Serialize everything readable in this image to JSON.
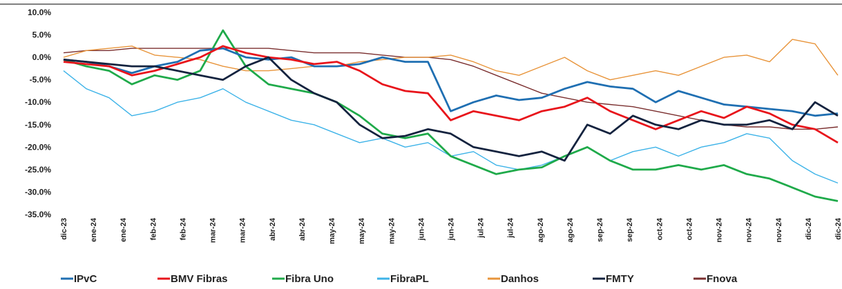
{
  "chart_data": {
    "type": "line",
    "title": "",
    "xlabel": "",
    "ylabel": "",
    "ylim": [
      -0.35,
      0.1
    ],
    "y_ticks": [
      {
        "value": 0.1,
        "label": "10.0%"
      },
      {
        "value": 0.05,
        "label": "5.0%"
      },
      {
        "value": 0.0,
        "label": "0.0%"
      },
      {
        "value": -0.05,
        "label": "-5.0%"
      },
      {
        "value": -0.1,
        "label": "-10.0%"
      },
      {
        "value": -0.15,
        "label": "-15.0%"
      },
      {
        "value": -0.2,
        "label": "-20.0%"
      },
      {
        "value": -0.25,
        "label": "-25.0%"
      },
      {
        "value": -0.3,
        "label": "-30.0%"
      },
      {
        "value": -0.35,
        "label": "-35.0%"
      }
    ],
    "x_tick_labels": [
      "dic-23",
      "ene-24",
      "ene-24",
      "feb-24",
      "feb-24",
      "mar-24",
      "mar-24",
      "abr-24",
      "abr-24",
      "may-24",
      "may-24",
      "may-24",
      "jun-24",
      "jun-24",
      "jul-24",
      "jul-24",
      "ago-24",
      "ago-24",
      "sep-24",
      "sep-24",
      "oct-24",
      "oct-24",
      "nov-24",
      "nov-24",
      "nov-24",
      "dic-24",
      "dic-24"
    ],
    "grid": false,
    "legend_position": "bottom",
    "colors": {
      "IPvC": "#1f6fb2",
      "BMV Fibras": "#e8141b",
      "Fibra Uno": "#1faa4a",
      "FibraPL": "#3db3e8",
      "Danhos": "#e8943a",
      "FMTY": "#14233f",
      "Fnova": "#7a2e2e"
    },
    "series": [
      {
        "name": "IPvC",
        "values": [
          -0.005,
          -0.01,
          -0.02,
          -0.035,
          -0.02,
          -0.01,
          0.015,
          0.02,
          0.0,
          -0.005,
          0.0,
          -0.02,
          -0.02,
          -0.015,
          0.0,
          -0.01,
          -0.01,
          -0.12,
          -0.1,
          -0.085,
          -0.095,
          -0.09,
          -0.07,
          -0.055,
          -0.065,
          -0.07,
          -0.1,
          -0.075,
          -0.09,
          -0.105,
          -0.11,
          -0.115,
          -0.12,
          -0.13,
          -0.125
        ]
      },
      {
        "name": "BMV Fibras",
        "values": [
          -0.01,
          -0.015,
          -0.02,
          -0.04,
          -0.03,
          -0.015,
          0.0,
          0.025,
          0.01,
          0.0,
          -0.005,
          -0.015,
          -0.01,
          -0.03,
          -0.06,
          -0.075,
          -0.08,
          -0.14,
          -0.12,
          -0.13,
          -0.14,
          -0.12,
          -0.11,
          -0.09,
          -0.12,
          -0.14,
          -0.16,
          -0.14,
          -0.12,
          -0.135,
          -0.11,
          -0.125,
          -0.15,
          -0.16,
          -0.19
        ]
      },
      {
        "name": "Fibra Uno",
        "values": [
          -0.005,
          -0.02,
          -0.03,
          -0.06,
          -0.04,
          -0.05,
          -0.03,
          0.06,
          -0.02,
          -0.06,
          -0.07,
          -0.08,
          -0.1,
          -0.13,
          -0.17,
          -0.18,
          -0.17,
          -0.22,
          -0.24,
          -0.26,
          -0.25,
          -0.245,
          -0.22,
          -0.2,
          -0.23,
          -0.25,
          -0.25,
          -0.24,
          -0.25,
          -0.24,
          -0.26,
          -0.27,
          -0.29,
          -0.31,
          -0.32
        ]
      },
      {
        "name": "FibraPL",
        "values": [
          -0.03,
          -0.07,
          -0.09,
          -0.13,
          -0.12,
          -0.1,
          -0.09,
          -0.07,
          -0.1,
          -0.12,
          -0.14,
          -0.15,
          -0.17,
          -0.19,
          -0.18,
          -0.2,
          -0.19,
          -0.22,
          -0.21,
          -0.24,
          -0.25,
          -0.24,
          -0.22,
          -0.2,
          -0.23,
          -0.21,
          -0.2,
          -0.22,
          -0.2,
          -0.19,
          -0.17,
          -0.18,
          -0.23,
          -0.26,
          -0.28
        ]
      },
      {
        "name": "Danhos",
        "values": [
          0.0,
          0.015,
          0.02,
          0.025,
          0.005,
          0.0,
          -0.005,
          -0.02,
          -0.03,
          -0.03,
          -0.025,
          -0.02,
          -0.02,
          -0.01,
          -0.005,
          0.0,
          0.0,
          0.005,
          -0.01,
          -0.03,
          -0.04,
          -0.02,
          0.0,
          -0.03,
          -0.05,
          -0.04,
          -0.03,
          -0.04,
          -0.02,
          0.0,
          0.005,
          -0.01,
          0.04,
          0.03,
          -0.04
        ]
      },
      {
        "name": "FMTY",
        "values": [
          -0.005,
          -0.01,
          -0.015,
          -0.02,
          -0.02,
          -0.03,
          -0.04,
          -0.05,
          -0.02,
          0.0,
          -0.05,
          -0.08,
          -0.1,
          -0.15,
          -0.18,
          -0.175,
          -0.16,
          -0.17,
          -0.2,
          -0.21,
          -0.22,
          -0.21,
          -0.23,
          -0.15,
          -0.17,
          -0.13,
          -0.15,
          -0.16,
          -0.14,
          -0.15,
          -0.15,
          -0.14,
          -0.16,
          -0.1,
          -0.13
        ]
      },
      {
        "name": "Fnova",
        "values": [
          0.01,
          0.015,
          0.015,
          0.02,
          0.02,
          0.02,
          0.02,
          0.02,
          0.02,
          0.02,
          0.015,
          0.01,
          0.01,
          0.01,
          0.005,
          0.0,
          0.0,
          -0.005,
          -0.02,
          -0.04,
          -0.06,
          -0.08,
          -0.09,
          -0.1,
          -0.105,
          -0.11,
          -0.12,
          -0.13,
          -0.14,
          -0.15,
          -0.155,
          -0.155,
          -0.16,
          -0.16,
          -0.155
        ]
      }
    ]
  }
}
